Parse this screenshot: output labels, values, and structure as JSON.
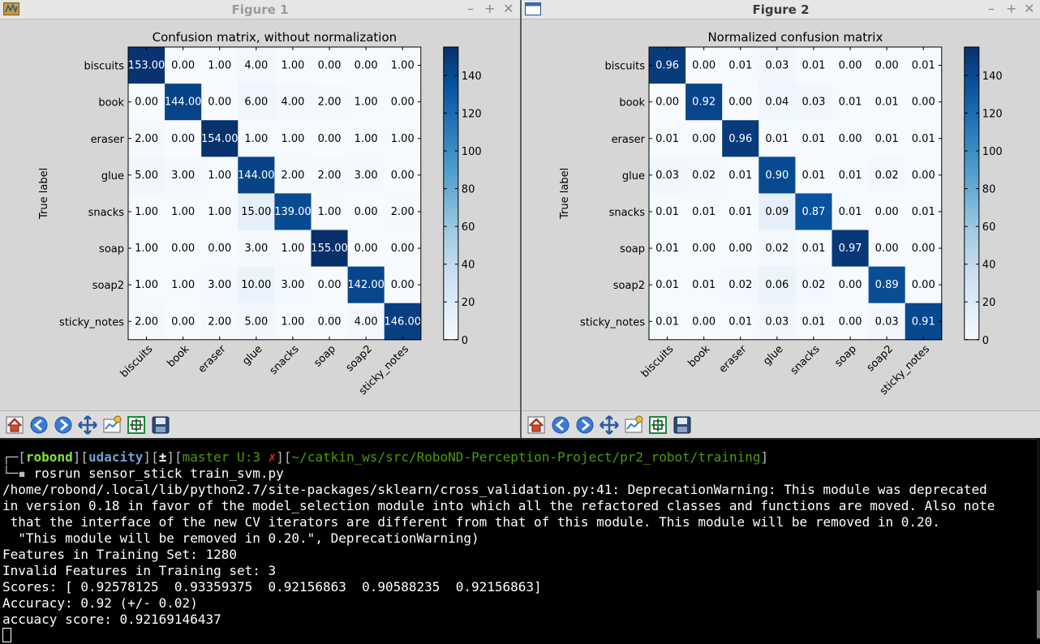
{
  "fig1": {
    "window_title": "Figure 1",
    "title": "Confusion matrix, without normalization",
    "ylabel": "True label",
    "xlabel": "Predicted label",
    "classes": [
      "biscuits",
      "book",
      "eraser",
      "glue",
      "snacks",
      "soap",
      "soap2",
      "sticky_notes"
    ],
    "cells": [
      [
        "153.00",
        "0.00",
        "1.00",
        "4.00",
        "1.00",
        "0.00",
        "0.00",
        "1.00"
      ],
      [
        "0.00",
        "144.00",
        "0.00",
        "6.00",
        "4.00",
        "2.00",
        "1.00",
        "0.00"
      ],
      [
        "2.00",
        "0.00",
        "154.00",
        "1.00",
        "1.00",
        "0.00",
        "1.00",
        "1.00"
      ],
      [
        "5.00",
        "3.00",
        "1.00",
        "144.00",
        "2.00",
        "2.00",
        "3.00",
        "0.00"
      ],
      [
        "1.00",
        "1.00",
        "1.00",
        "15.00",
        "139.00",
        "1.00",
        "0.00",
        "2.00"
      ],
      [
        "1.00",
        "0.00",
        "0.00",
        "3.00",
        "1.00",
        "155.00",
        "0.00",
        "0.00"
      ],
      [
        "1.00",
        "1.00",
        "3.00",
        "10.00",
        "3.00",
        "0.00",
        "142.00",
        "0.00"
      ],
      [
        "2.00",
        "0.00",
        "2.00",
        "5.00",
        "1.00",
        "0.00",
        "4.00",
        "146.00"
      ]
    ],
    "colorbar_ticks": [
      "0",
      "20",
      "40",
      "60",
      "80",
      "100",
      "120",
      "140"
    ]
  },
  "fig2": {
    "window_title": "Figure 2",
    "title": "Normalized confusion matrix",
    "ylabel": "True label",
    "xlabel": "Predicted label",
    "classes": [
      "biscuits",
      "book",
      "eraser",
      "glue",
      "snacks",
      "soap",
      "soap2",
      "sticky_notes"
    ],
    "cells": [
      [
        "0.96",
        "0.00",
        "0.01",
        "0.03",
        "0.01",
        "0.00",
        "0.00",
        "0.01"
      ],
      [
        "0.00",
        "0.92",
        "0.00",
        "0.04",
        "0.03",
        "0.01",
        "0.01",
        "0.00"
      ],
      [
        "0.01",
        "0.00",
        "0.96",
        "0.01",
        "0.01",
        "0.00",
        "0.01",
        "0.01"
      ],
      [
        "0.03",
        "0.02",
        "0.01",
        "0.90",
        "0.01",
        "0.01",
        "0.02",
        "0.00"
      ],
      [
        "0.01",
        "0.01",
        "0.01",
        "0.09",
        "0.87",
        "0.01",
        "0.00",
        "0.01"
      ],
      [
        "0.01",
        "0.00",
        "0.00",
        "0.02",
        "0.01",
        "0.97",
        "0.00",
        "0.00"
      ],
      [
        "0.01",
        "0.01",
        "0.02",
        "0.06",
        "0.02",
        "0.00",
        "0.89",
        "0.00"
      ],
      [
        "0.01",
        "0.00",
        "0.01",
        "0.03",
        "0.01",
        "0.00",
        "0.03",
        "0.91"
      ]
    ],
    "colorbar_ticks": [
      "0",
      "20",
      "40",
      "60",
      "80",
      "100",
      "120",
      "140"
    ]
  },
  "chart_data": [
    {
      "type": "heatmap",
      "title": "Confusion matrix, without normalization",
      "xlabel": "Predicted label",
      "ylabel": "True label",
      "x": [
        "biscuits",
        "book",
        "eraser",
        "glue",
        "snacks",
        "soap",
        "soap2",
        "sticky_notes"
      ],
      "y": [
        "biscuits",
        "book",
        "eraser",
        "glue",
        "snacks",
        "soap",
        "soap2",
        "sticky_notes"
      ],
      "values": [
        [
          153,
          0,
          1,
          4,
          1,
          0,
          0,
          1
        ],
        [
          0,
          144,
          0,
          6,
          4,
          2,
          1,
          0
        ],
        [
          2,
          0,
          154,
          1,
          1,
          0,
          1,
          1
        ],
        [
          5,
          3,
          1,
          144,
          2,
          2,
          3,
          0
        ],
        [
          1,
          1,
          1,
          15,
          139,
          1,
          0,
          2
        ],
        [
          1,
          0,
          0,
          3,
          1,
          155,
          0,
          0
        ],
        [
          1,
          1,
          3,
          10,
          3,
          0,
          142,
          0
        ],
        [
          2,
          0,
          2,
          5,
          1,
          0,
          4,
          146
        ]
      ],
      "colorbar_range": [
        0,
        155
      ]
    },
    {
      "type": "heatmap",
      "title": "Normalized confusion matrix",
      "xlabel": "Predicted label",
      "ylabel": "True label",
      "x": [
        "biscuits",
        "book",
        "eraser",
        "glue",
        "snacks",
        "soap",
        "soap2",
        "sticky_notes"
      ],
      "y": [
        "biscuits",
        "book",
        "eraser",
        "glue",
        "snacks",
        "soap",
        "soap2",
        "sticky_notes"
      ],
      "values": [
        [
          0.96,
          0.0,
          0.01,
          0.03,
          0.01,
          0.0,
          0.0,
          0.01
        ],
        [
          0.0,
          0.92,
          0.0,
          0.04,
          0.03,
          0.01,
          0.01,
          0.0
        ],
        [
          0.01,
          0.0,
          0.96,
          0.01,
          0.01,
          0.0,
          0.01,
          0.01
        ],
        [
          0.03,
          0.02,
          0.01,
          0.9,
          0.01,
          0.01,
          0.02,
          0.0
        ],
        [
          0.01,
          0.01,
          0.01,
          0.09,
          0.87,
          0.01,
          0.0,
          0.01
        ],
        [
          0.01,
          0.0,
          0.0,
          0.02,
          0.01,
          0.97,
          0.0,
          0.0
        ],
        [
          0.01,
          0.01,
          0.02,
          0.06,
          0.02,
          0.0,
          0.89,
          0.0
        ],
        [
          0.01,
          0.0,
          0.01,
          0.03,
          0.01,
          0.0,
          0.03,
          0.91
        ]
      ],
      "colorbar_range": [
        0,
        155
      ]
    }
  ],
  "toolbar_icons": [
    "home-icon",
    "back-icon",
    "forward-icon",
    "pan-icon",
    "subplots-icon",
    "zoom-icon",
    "save-icon"
  ],
  "terminal": {
    "prompt_user": "robond",
    "prompt_host": "udacity",
    "prompt_pm": "±",
    "prompt_branch": "master U:3 ",
    "prompt_x": "✗",
    "prompt_path": "~/catkin_ws/src/RoboND-Perception-Project/pr2_robot/training",
    "command": "rosrun sensor_stick train_svm.py",
    "lines": [
      "/home/robond/.local/lib/python2.7/site-packages/sklearn/cross_validation.py:41: DeprecationWarning: This module was deprecated",
      "in version 0.18 in favor of the model_selection module into which all the refactored classes and functions are moved. Also note",
      " that the interface of the new CV iterators are different from that of this module. This module will be removed in 0.20.",
      "  \"This module will be removed in 0.20.\", DeprecationWarning)",
      "Features in Training Set: 1280",
      "Invalid Features in Training set: 3",
      "Scores: [ 0.92578125  0.93359375  0.92156863  0.90588235  0.92156863]",
      "Accuracy: 0.92 (+/- 0.02)",
      "accuacy score: 0.92169146437"
    ]
  }
}
